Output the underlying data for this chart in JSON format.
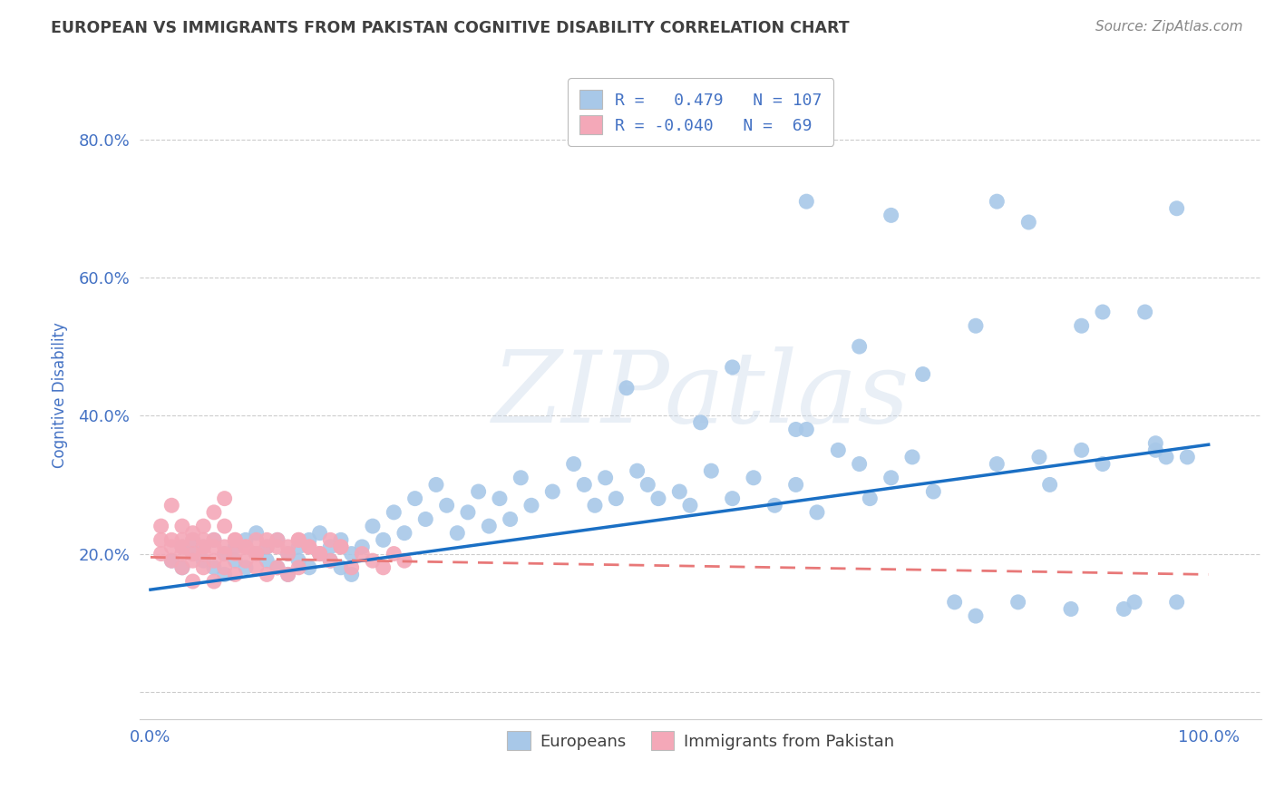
{
  "title": "EUROPEAN VS IMMIGRANTS FROM PAKISTAN COGNITIVE DISABILITY CORRELATION CHART",
  "source": "Source: ZipAtlas.com",
  "ylabel": "Cognitive Disability",
  "watermark": "ZIPatlas",
  "xlim": [
    -0.01,
    1.05
  ],
  "ylim": [
    -0.04,
    0.9
  ],
  "xticks": [
    0.0,
    0.2,
    0.4,
    0.6,
    0.8,
    1.0
  ],
  "xtick_labels": [
    "0.0%",
    "",
    "",
    "",
    "",
    "100.0%"
  ],
  "yticks": [
    0.0,
    0.2,
    0.4,
    0.6,
    0.8
  ],
  "ytick_labels": [
    "",
    "20.0%",
    "40.0%",
    "60.0%",
    "80.0%"
  ],
  "legend_european_label": "R =   0.479   N = 107",
  "legend_pakistan_label": "R = -0.040   N =  69",
  "legend_bottom_european": "Europeans",
  "legend_bottom_pakistan": "Immigrants from Pakistan",
  "european_color": "#a8c8e8",
  "pakistan_color": "#f4a8b8",
  "european_line_color": "#1a6fc4",
  "pakistan_line_color": "#e87878",
  "blue_line_y_start": 0.148,
  "blue_line_y_end": 0.358,
  "pink_line_y_start": 0.195,
  "pink_line_y_end": 0.17,
  "blue_scatter_x": [
    0.02,
    0.03,
    0.03,
    0.04,
    0.04,
    0.05,
    0.05,
    0.06,
    0.06,
    0.07,
    0.07,
    0.08,
    0.08,
    0.09,
    0.09,
    0.1,
    0.1,
    0.11,
    0.11,
    0.12,
    0.12,
    0.13,
    0.13,
    0.14,
    0.14,
    0.15,
    0.15,
    0.16,
    0.16,
    0.17,
    0.17,
    0.18,
    0.18,
    0.19,
    0.19,
    0.2,
    0.21,
    0.22,
    0.23,
    0.24,
    0.25,
    0.26,
    0.27,
    0.28,
    0.29,
    0.3,
    0.31,
    0.32,
    0.33,
    0.34,
    0.35,
    0.36,
    0.38,
    0.4,
    0.41,
    0.42,
    0.43,
    0.44,
    0.45,
    0.46,
    0.47,
    0.48,
    0.5,
    0.51,
    0.52,
    0.53,
    0.55,
    0.57,
    0.59,
    0.61,
    0.62,
    0.63,
    0.65,
    0.67,
    0.68,
    0.7,
    0.72,
    0.74,
    0.76,
    0.78,
    0.8,
    0.82,
    0.84,
    0.85,
    0.87,
    0.88,
    0.9,
    0.92,
    0.93,
    0.95,
    0.96,
    0.97,
    0.98,
    0.55,
    0.61,
    0.67,
    0.73,
    0.78,
    0.83,
    0.9,
    0.94,
    0.62,
    0.7,
    0.8,
    0.88,
    0.95,
    0.97
  ],
  "blue_scatter_y": [
    0.19,
    0.21,
    0.18,
    0.22,
    0.2,
    0.19,
    0.21,
    0.18,
    0.22,
    0.2,
    0.17,
    0.21,
    0.19,
    0.22,
    0.18,
    0.2,
    0.23,
    0.19,
    0.21,
    0.18,
    0.22,
    0.2,
    0.17,
    0.21,
    0.19,
    0.22,
    0.18,
    0.2,
    0.23,
    0.19,
    0.21,
    0.18,
    0.22,
    0.2,
    0.17,
    0.21,
    0.24,
    0.22,
    0.26,
    0.23,
    0.28,
    0.25,
    0.3,
    0.27,
    0.23,
    0.26,
    0.29,
    0.24,
    0.28,
    0.25,
    0.31,
    0.27,
    0.29,
    0.33,
    0.3,
    0.27,
    0.31,
    0.28,
    0.44,
    0.32,
    0.3,
    0.28,
    0.29,
    0.27,
    0.39,
    0.32,
    0.28,
    0.31,
    0.27,
    0.3,
    0.38,
    0.26,
    0.35,
    0.33,
    0.28,
    0.31,
    0.34,
    0.29,
    0.13,
    0.11,
    0.33,
    0.13,
    0.34,
    0.3,
    0.12,
    0.35,
    0.33,
    0.12,
    0.13,
    0.35,
    0.34,
    0.13,
    0.34,
    0.47,
    0.38,
    0.5,
    0.46,
    0.53,
    0.68,
    0.55,
    0.55,
    0.71,
    0.69,
    0.71,
    0.53,
    0.36,
    0.7
  ],
  "pink_scatter_x": [
    0.01,
    0.01,
    0.02,
    0.02,
    0.02,
    0.03,
    0.03,
    0.03,
    0.03,
    0.04,
    0.04,
    0.04,
    0.04,
    0.05,
    0.05,
    0.05,
    0.05,
    0.06,
    0.06,
    0.06,
    0.07,
    0.07,
    0.07,
    0.08,
    0.08,
    0.08,
    0.09,
    0.09,
    0.1,
    0.1,
    0.1,
    0.11,
    0.11,
    0.12,
    0.12,
    0.13,
    0.13,
    0.14,
    0.14,
    0.15,
    0.16,
    0.17,
    0.18,
    0.19,
    0.2,
    0.21,
    0.22,
    0.23,
    0.24,
    0.01,
    0.02,
    0.03,
    0.04,
    0.05,
    0.06,
    0.07,
    0.08,
    0.09,
    0.1,
    0.11,
    0.12,
    0.13,
    0.14,
    0.15,
    0.16,
    0.17,
    0.18,
    0.06,
    0.07
  ],
  "pink_scatter_y": [
    0.2,
    0.24,
    0.22,
    0.19,
    0.27,
    0.21,
    0.18,
    0.24,
    0.2,
    0.22,
    0.19,
    0.16,
    0.23,
    0.21,
    0.18,
    0.24,
    0.2,
    0.22,
    0.19,
    0.16,
    0.21,
    0.18,
    0.24,
    0.2,
    0.22,
    0.17,
    0.21,
    0.19,
    0.22,
    0.18,
    0.2,
    0.21,
    0.17,
    0.22,
    0.18,
    0.21,
    0.17,
    0.22,
    0.18,
    0.21,
    0.2,
    0.19,
    0.21,
    0.18,
    0.2,
    0.19,
    0.18,
    0.2,
    0.19,
    0.22,
    0.21,
    0.22,
    0.2,
    0.22,
    0.21,
    0.2,
    0.22,
    0.21,
    0.2,
    0.22,
    0.21,
    0.2,
    0.22,
    0.21,
    0.2,
    0.22,
    0.21,
    0.26,
    0.28
  ],
  "grid_color": "#cccccc",
  "background_color": "#ffffff",
  "title_color": "#404040",
  "text_color": "#4472c4"
}
